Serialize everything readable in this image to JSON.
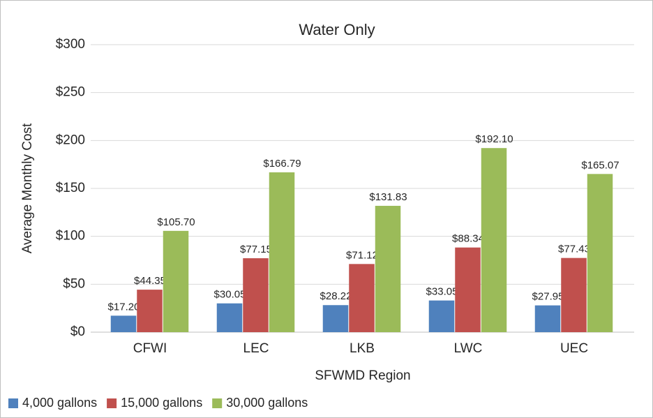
{
  "chart_data": {
    "type": "bar",
    "title": "Water Only",
    "x_label": "SFWMD Region",
    "y_label": "Average Monthly Cost",
    "categories": [
      "CFWI",
      "LEC",
      "LKB",
      "LWC",
      "UEC"
    ],
    "series": [
      {
        "name": "4,000 gallons",
        "color": "#4f81bd",
        "values": [
          17.2,
          30.05,
          28.22,
          33.05,
          27.95
        ],
        "value_labels": [
          "$17.20",
          "$30.05",
          "$28.22",
          "$33.05",
          "$27.95"
        ]
      },
      {
        "name": "15,000 gallons",
        "color": "#c0504d",
        "values": [
          44.35,
          77.15,
          71.12,
          88.34,
          77.43
        ],
        "value_labels": [
          "$44.35",
          "$77.15",
          "$71.12",
          "$88.34",
          "$77.43"
        ]
      },
      {
        "name": "30,000 gallons",
        "color": "#9bbb59",
        "values": [
          105.7,
          166.79,
          131.83,
          192.1,
          165.07
        ],
        "value_labels": [
          "$105.70",
          "$166.79",
          "$131.83",
          "$192.10",
          "$165.07"
        ]
      }
    ],
    "ylim": [
      0,
      300
    ],
    "yticks": [
      {
        "value": 0,
        "label": "$0"
      },
      {
        "value": 50,
        "label": "$50"
      },
      {
        "value": 100,
        "label": "$100"
      },
      {
        "value": 150,
        "label": "$150"
      },
      {
        "value": 200,
        "label": "$200"
      },
      {
        "value": 250,
        "label": "$250"
      },
      {
        "value": 300,
        "label": "$300"
      }
    ],
    "grid": true,
    "legend": "bottom-left"
  }
}
